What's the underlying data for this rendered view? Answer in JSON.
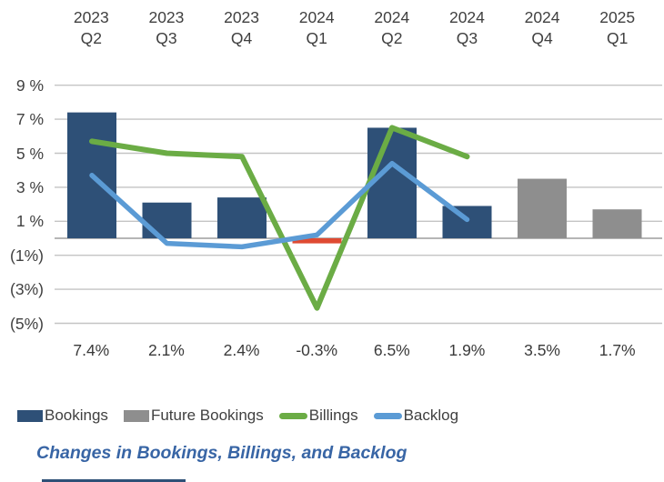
{
  "caption": "Changes in Bookings, Billings, and Backlog",
  "colors": {
    "bookings": "#2E5077",
    "bookings_negative": "#DF4A32",
    "future_bookings": "#8E8E8E",
    "billings": "#6BAC45",
    "backlog": "#5B9BD5",
    "gridline": "#C4C4C4",
    "zero_axis": "#9E9E9E",
    "caption_text": "#3865A5",
    "axis_text": "#404040",
    "bottom_strip": "#2E5077"
  },
  "chart_data": {
    "type": "combo",
    "categories": [
      "2023 Q2",
      "2023 Q3",
      "2023 Q4",
      "2024 Q1",
      "2024 Q2",
      "2024 Q3",
      "2024 Q4",
      "2025 Q1"
    ],
    "series": [
      {
        "name": "Bookings",
        "kind": "bar",
        "color": "#2E5077",
        "negative_color": "#DF4A32",
        "values": [
          7.4,
          2.1,
          2.4,
          -0.3,
          6.5,
          1.9,
          null,
          null
        ]
      },
      {
        "name": "Future Bookings",
        "kind": "bar",
        "color": "#8E8E8E",
        "values": [
          null,
          null,
          null,
          null,
          null,
          null,
          3.5,
          1.7
        ]
      },
      {
        "name": "Billings",
        "kind": "line",
        "color": "#6BAC45",
        "values": [
          5.7,
          5.0,
          4.8,
          -4.1,
          6.5,
          4.8,
          null,
          null
        ]
      },
      {
        "name": "Backlog",
        "kind": "line",
        "color": "#5B9BD5",
        "values": [
          3.7,
          -0.3,
          -0.5,
          0.2,
          4.4,
          1.1,
          null,
          null
        ]
      }
    ],
    "value_labels": [
      "7.4%",
      "2.1%",
      "2.4%",
      "-0.3%",
      "6.5%",
      "1.9%",
      "3.5%",
      "1.7%"
    ],
    "y_tick_labels": [
      "9 %",
      "7 %",
      "5 %",
      "3 %",
      "1 %",
      "(1%)",
      "(3%)",
      "(5%)"
    ],
    "y_tick_values": [
      9,
      7,
      5,
      3,
      1,
      -1,
      -3,
      -5
    ],
    "ylim": [
      -5,
      9
    ],
    "grid": true,
    "legend_position": "bottom",
    "legend": [
      {
        "label": "Bookings",
        "swatch": "bar",
        "color": "#2E5077"
      },
      {
        "label": "Future Bookings",
        "swatch": "bar",
        "color": "#8E8E8E"
      },
      {
        "label": "Billings",
        "swatch": "line",
        "color": "#6BAC45"
      },
      {
        "label": "Backlog",
        "swatch": "line",
        "color": "#5B9BD5"
      }
    ],
    "title": "Changes in Bookings, Billings, and Backlog"
  }
}
